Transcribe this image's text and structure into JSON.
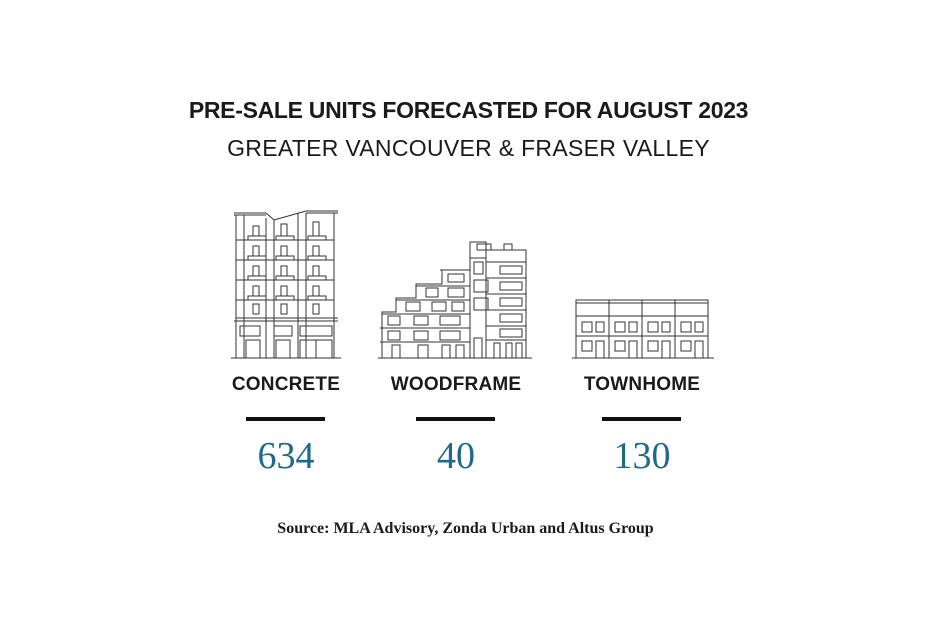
{
  "header": {
    "title": "PRE-SALE UNITS FORECASTED FOR AUGUST 2023",
    "subtitle": "GREATER VANCOUVER & FRASER VALLEY"
  },
  "accent_color": "#1f6a8a",
  "items": [
    {
      "label": "CONCRETE",
      "value": "634",
      "icon": "concrete-tower-icon"
    },
    {
      "label": "WOODFRAME",
      "value": "40",
      "icon": "woodframe-building-icon"
    },
    {
      "label": "TOWNHOME",
      "value": "130",
      "icon": "townhome-row-icon"
    }
  ],
  "source": "Source: MLA Advisory, Zonda Urban and Altus Group"
}
